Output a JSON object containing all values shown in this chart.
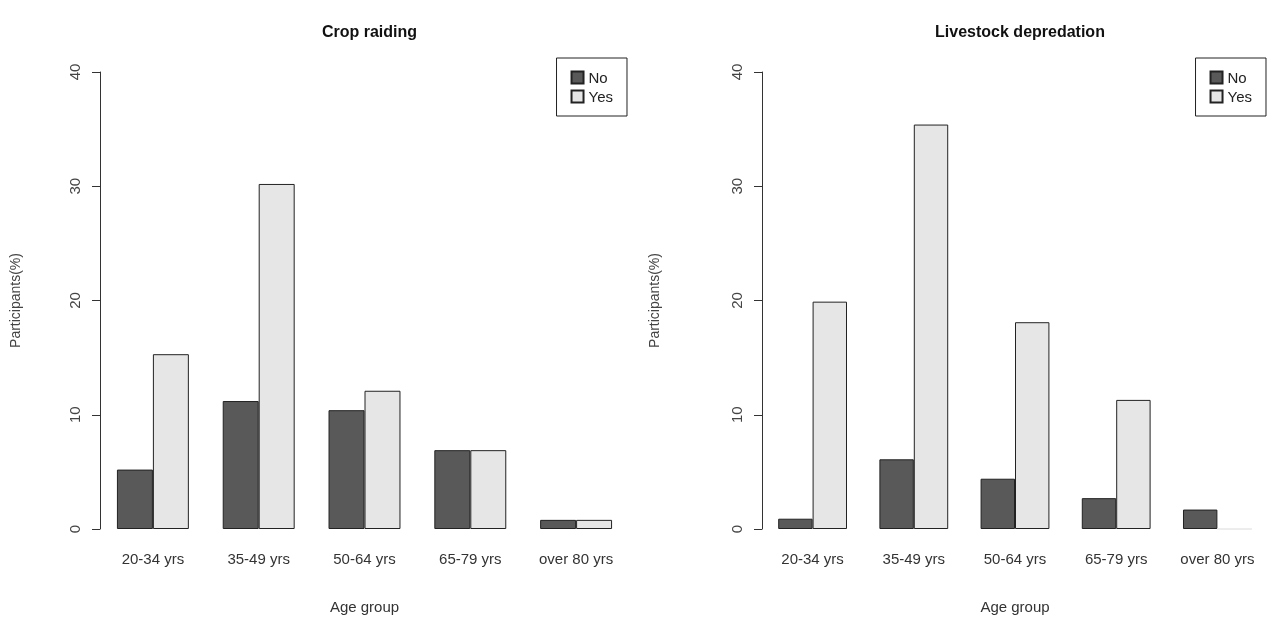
{
  "chart_data": [
    {
      "type": "bar",
      "title": "Crop raiding",
      "xlabel": "Age group",
      "ylabel": "Participants(%)",
      "categories": [
        "20-34 yrs",
        "35-49 yrs",
        "50-64 yrs",
        "65-79 yrs",
        "over 80 yrs"
      ],
      "ylim": [
        0,
        40
      ],
      "yticks": [
        0,
        10,
        20,
        30,
        40
      ],
      "legend": "top right",
      "series": [
        {
          "name": "No",
          "color": "#595959",
          "values": [
            5.2,
            11.2,
            10.4,
            6.9,
            0.8
          ]
        },
        {
          "name": "Yes",
          "color": "#e6e6e6",
          "values": [
            15.3,
            30.2,
            12.1,
            6.9,
            0.8
          ]
        }
      ]
    },
    {
      "type": "bar",
      "title": "Livestock depredation",
      "xlabel": "Age group",
      "ylabel": "Participants(%)",
      "categories": [
        "20-34 yrs",
        "35-49 yrs",
        "50-64 yrs",
        "65-79 yrs",
        "over 80 yrs"
      ],
      "ylim": [
        0,
        40
      ],
      "yticks": [
        0,
        10,
        20,
        30,
        40
      ],
      "legend": "top right",
      "series": [
        {
          "name": "No",
          "color": "#595959",
          "values": [
            0.9,
            6.1,
            4.4,
            2.7,
            1.7
          ]
        },
        {
          "name": "Yes",
          "color": "#e6e6e6",
          "values": [
            19.9,
            35.4,
            18.1,
            11.3,
            0
          ]
        }
      ]
    }
  ]
}
